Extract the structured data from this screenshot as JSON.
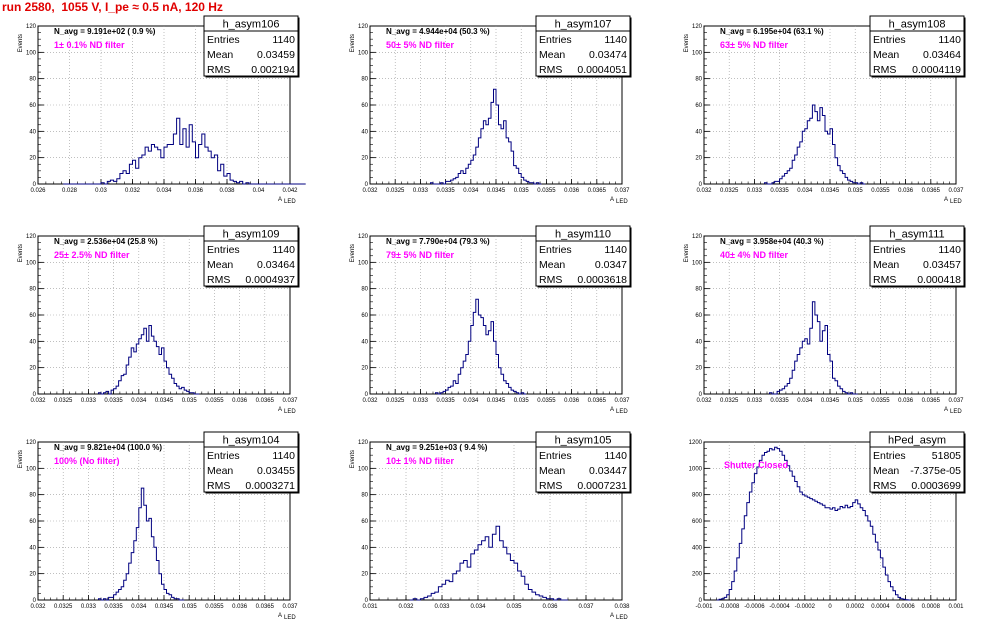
{
  "page_title": "run 2580,  1055 V, I_pe ≈ 0.5 nA, 120 Hz",
  "colors": {
    "title": "#e00000",
    "hist": "#000080",
    "filter_text": "#ff00ff",
    "grid": "#999999"
  },
  "stats_labels": {
    "entries": "Entries",
    "mean": "Mean",
    "rms": "RMS"
  },
  "chart_data": [
    {
      "type": "histogram",
      "name": "h_asym106",
      "navg": "N_avg = 9.191e+02 ( 0.9 %)",
      "filter": "1± 0.1% ND filter",
      "entries": "1140",
      "mean": "0.03459",
      "rms": "0.002194",
      "ylabel": "Events",
      "xlabel": "A",
      "xlabel_sub": "LED",
      "xlim": [
        0.026,
        0.042
      ],
      "ylim": [
        0,
        120
      ],
      "xticks": [
        "0.026",
        "0.028",
        "0.03",
        "0.032",
        "0.034",
        "0.036",
        "0.038",
        "0.04",
        "0.042"
      ],
      "yticks": [
        "0",
        "20",
        "40",
        "60",
        "80",
        "100",
        "120"
      ],
      "grid": true,
      "bin_width": 0.0002,
      "x_start": 0.0276,
      "counts": [
        0,
        0,
        0,
        0,
        0,
        0,
        0,
        0,
        0,
        0,
        0,
        0,
        1,
        0,
        2,
        3,
        2,
        4,
        8,
        10,
        8,
        15,
        18,
        12,
        20,
        22,
        28,
        25,
        30,
        28,
        26,
        20,
        28,
        30,
        30,
        38,
        50,
        30,
        42,
        28,
        45,
        32,
        20,
        30,
        38,
        28,
        25,
        20,
        22,
        10,
        15,
        6,
        8,
        3,
        2,
        1,
        2,
        0,
        1,
        0,
        0,
        0,
        0,
        0,
        0,
        0,
        0,
        0,
        0,
        0,
        0,
        0,
        0,
        0,
        0,
        0,
        0
      ]
    },
    {
      "type": "histogram",
      "name": "h_asym107",
      "navg": "N_avg = 4.944e+04 (50.3 %)",
      "filter": "50± 5% ND filter",
      "entries": "1140",
      "mean": "0.03474",
      "rms": "0.0004051",
      "ylabel": "Events",
      "xlabel": "A",
      "xlabel_sub": "LED",
      "xlim": [
        0.032,
        0.037
      ],
      "ylim": [
        0,
        120
      ],
      "xticks": [
        "0.032",
        "0.0325",
        "0.033",
        "0.0335",
        "0.034",
        "0.0345",
        "0.035",
        "0.0355",
        "0.036",
        "0.0365",
        "0.037"
      ],
      "yticks": [
        "0",
        "20",
        "40",
        "60",
        "80",
        "100",
        "120"
      ],
      "grid": true,
      "bin_width": 5e-05,
      "x_start": 0.0332,
      "counts": [
        1,
        0,
        0,
        0,
        1,
        0,
        2,
        2,
        3,
        4,
        5,
        8,
        10,
        8,
        12,
        15,
        18,
        22,
        28,
        35,
        42,
        48,
        45,
        50,
        62,
        72,
        60,
        45,
        42,
        48,
        35,
        32,
        25,
        14,
        12,
        8,
        5,
        3,
        2,
        1,
        1,
        0,
        1,
        0
      ]
    },
    {
      "type": "histogram",
      "name": "h_asym108",
      "navg": "N_avg = 6.195e+04 (63.1 %)",
      "filter": "63± 5% ND filter",
      "entries": "1140",
      "mean": "0.03464",
      "rms": "0.0004119",
      "ylabel": "Events",
      "xlabel": "A",
      "xlabel_sub": "LED",
      "xlim": [
        0.032,
        0.037
      ],
      "ylim": [
        0,
        120
      ],
      "xticks": [
        "0.032",
        "0.0325",
        "0.033",
        "0.0335",
        "0.034",
        "0.0345",
        "0.035",
        "0.0355",
        "0.036",
        "0.0365",
        "0.037"
      ],
      "yticks": [
        "0",
        "20",
        "40",
        "60",
        "80",
        "100",
        "120"
      ],
      "grid": true,
      "bin_width": 5e-05,
      "x_start": 0.0332,
      "counts": [
        1,
        0,
        0,
        1,
        2,
        2,
        4,
        6,
        8,
        10,
        12,
        18,
        22,
        28,
        32,
        40,
        42,
        48,
        50,
        60,
        55,
        48,
        58,
        52,
        40,
        38,
        42,
        30,
        20,
        14,
        10,
        8,
        5,
        3,
        2,
        1,
        1,
        0,
        1,
        0
      ]
    },
    {
      "type": "histogram",
      "name": "h_asym109",
      "navg": "N_avg = 2.536e+04 (25.8 %)",
      "filter": "25± 2.5% ND filter",
      "entries": "1140",
      "mean": "0.03464",
      "rms": "0.0004937",
      "ylabel": "Events",
      "xlabel": "A",
      "xlabel_sub": "LED",
      "xlim": [
        0.032,
        0.037
      ],
      "ylim": [
        0,
        120
      ],
      "xticks": [
        "0.032",
        "0.0325",
        "0.033",
        "0.0335",
        "0.034",
        "0.0345",
        "0.035",
        "0.0355",
        "0.036",
        "0.0365",
        "0.037"
      ],
      "yticks": [
        "0",
        "20",
        "40",
        "60",
        "80",
        "100",
        "120"
      ],
      "grid": true,
      "bin_width": 5e-05,
      "x_start": 0.0332,
      "counts": [
        1,
        0,
        1,
        2,
        0,
        3,
        4,
        6,
        10,
        14,
        15,
        22,
        28,
        35,
        32,
        38,
        42,
        45,
        50,
        40,
        52,
        44,
        40,
        36,
        30,
        35,
        25,
        20,
        15,
        12,
        8,
        6,
        4,
        5,
        3,
        2,
        1,
        1,
        0,
        0
      ]
    },
    {
      "type": "histogram",
      "name": "h_asym110",
      "navg": "N_avg = 7.790e+04 (79.3 %)",
      "filter": "79± 5% ND filter",
      "entries": "1140",
      "mean": "0.0347",
      "rms": "0.0003618",
      "ylabel": "Events",
      "xlabel": "A",
      "xlabel_sub": "LED",
      "xlim": [
        0.032,
        0.037
      ],
      "ylim": [
        0,
        120
      ],
      "xticks": [
        "0.032",
        "0.0325",
        "0.033",
        "0.0335",
        "0.034",
        "0.0345",
        "0.035",
        "0.0355",
        "0.036",
        "0.0365",
        "0.037"
      ],
      "yticks": [
        "0",
        "20",
        "40",
        "60",
        "80",
        "100",
        "120"
      ],
      "grid": true,
      "bin_width": 5e-05,
      "x_start": 0.0333,
      "counts": [
        1,
        0,
        1,
        2,
        3,
        5,
        6,
        10,
        8,
        15,
        20,
        25,
        30,
        40,
        52,
        62,
        72,
        60,
        58,
        52,
        45,
        48,
        55,
        40,
        30,
        20,
        15,
        10,
        8,
        5,
        3,
        2,
        1,
        0,
        1,
        0
      ]
    },
    {
      "type": "histogram",
      "name": "h_asym111",
      "navg": "N_avg = 3.958e+04 (40.3 %)",
      "filter": "40± 4% ND filter",
      "entries": "1140",
      "mean": "0.03457",
      "rms": "0.000418",
      "ylabel": "Events",
      "xlabel": "A",
      "xlabel_sub": "LED",
      "xlim": [
        0.032,
        0.037
      ],
      "ylim": [
        0,
        120
      ],
      "xticks": [
        "0.032",
        "0.0325",
        "0.033",
        "0.0335",
        "0.034",
        "0.0345",
        "0.035",
        "0.0355",
        "0.036",
        "0.0365",
        "0.037"
      ],
      "yticks": [
        "0",
        "20",
        "40",
        "60",
        "80",
        "100",
        "120"
      ],
      "grid": true,
      "bin_width": 5e-05,
      "x_start": 0.0333,
      "counts": [
        1,
        0,
        0,
        2,
        3,
        4,
        6,
        8,
        12,
        18,
        25,
        30,
        35,
        40,
        42,
        38,
        50,
        70,
        60,
        55,
        40,
        48,
        52,
        30,
        25,
        12,
        10,
        6,
        4,
        2,
        1,
        0,
        1,
        0,
        0
      ]
    },
    {
      "type": "histogram",
      "name": "h_asym104",
      "navg": "N_avg = 9.821e+04 (100.0 %)",
      "filter": "100% (No filter)",
      "entries": "1140",
      "mean": "0.03455",
      "rms": "0.0003271",
      "ylabel": "Events",
      "xlabel": "A",
      "xlabel_sub": "LED",
      "xlim": [
        0.032,
        0.037
      ],
      "ylim": [
        0,
        120
      ],
      "xticks": [
        "0.032",
        "0.0325",
        "0.033",
        "0.0335",
        "0.034",
        "0.0345",
        "0.035",
        "0.0355",
        "0.036",
        "0.0365",
        "0.037"
      ],
      "yticks": [
        "0",
        "20",
        "40",
        "60",
        "80",
        "100",
        "120"
      ],
      "grid": true,
      "bin_width": 5e-05,
      "x_start": 0.0332,
      "counts": [
        1,
        0,
        1,
        0,
        2,
        2,
        4,
        6,
        8,
        10,
        15,
        20,
        28,
        36,
        45,
        55,
        70,
        85,
        72,
        60,
        62,
        48,
        40,
        30,
        20,
        12,
        8,
        5,
        4,
        2,
        1,
        1,
        0,
        0
      ]
    },
    {
      "type": "histogram",
      "name": "h_asym105",
      "navg": "N_avg = 9.251e+03 ( 9.4 %)",
      "filter": "10± 1% ND filter",
      "entries": "1140",
      "mean": "0.03447",
      "rms": "0.0007231",
      "ylabel": "Events",
      "xlabel": "A",
      "xlabel_sub": "LED",
      "xlim": [
        0.031,
        0.038
      ],
      "ylim": [
        0,
        120
      ],
      "xticks": [
        "0.031",
        "0.032",
        "0.033",
        "0.034",
        "0.035",
        "0.036",
        "0.037",
        "0.038"
      ],
      "yticks": [
        "0",
        "20",
        "40",
        "60",
        "80",
        "100",
        "120"
      ],
      "grid": true,
      "bin_width": 0.0001,
      "x_start": 0.0321,
      "counts": [
        0,
        1,
        0,
        1,
        2,
        3,
        5,
        6,
        10,
        12,
        15,
        14,
        20,
        22,
        28,
        30,
        25,
        35,
        38,
        42,
        45,
        48,
        40,
        50,
        56,
        45,
        40,
        35,
        30,
        28,
        22,
        18,
        12,
        8,
        6,
        4,
        3,
        2,
        1,
        1,
        0,
        1,
        0,
        0
      ]
    },
    {
      "type": "histogram",
      "name": "hPed_asym",
      "navg": "",
      "filter": "Shutter Closed",
      "entries": "51805",
      "mean": "-7.375e-05",
      "rms": "0.0003699",
      "ylabel": "",
      "xlabel": "",
      "xlabel_sub": "",
      "xlim": [
        -0.001,
        0.001
      ],
      "ylim": [
        0,
        1200
      ],
      "xticks": [
        "-0.001",
        "-0.0008",
        "-0.0006",
        "-0.0004",
        "-0.0002",
        "0",
        "0.0002",
        "0.0004",
        "0.0006",
        "0.0008",
        "0.001"
      ],
      "yticks": [
        "0",
        "200",
        "400",
        "600",
        "800",
        "1000",
        "1200"
      ],
      "grid": true,
      "bin_width": 2e-05,
      "x_start": -0.0009,
      "counts": [
        0,
        5,
        10,
        20,
        40,
        80,
        140,
        220,
        320,
        430,
        540,
        640,
        740,
        820,
        890,
        960,
        1010,
        1060,
        1100,
        1120,
        1130,
        1150,
        1140,
        1160,
        1150,
        1130,
        1100,
        1060,
        1020,
        980,
        940,
        900,
        860,
        820,
        800,
        790,
        780,
        770,
        760,
        750,
        740,
        730,
        720,
        700,
        700,
        690,
        700,
        680,
        690,
        710,
        700,
        720,
        700,
        710,
        740,
        760,
        730,
        700,
        680,
        640,
        600,
        560,
        500,
        440,
        380,
        320,
        250,
        190,
        140,
        100,
        70,
        40,
        20,
        10,
        5,
        2,
        0
      ]
    }
  ]
}
